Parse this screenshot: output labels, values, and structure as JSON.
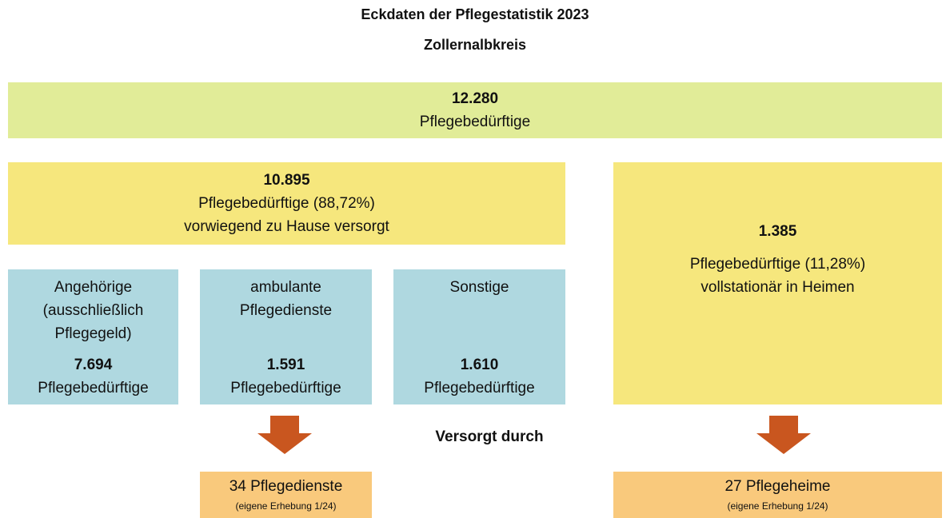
{
  "header": {
    "title": "Eckdaten der Pflegestatistik 2023",
    "subtitle": "Zollernalbkreis"
  },
  "total": {
    "value": "12.280",
    "label": "Pflegebedürftige"
  },
  "home": {
    "value": "10.895",
    "lines": [
      "Pflegebedürftige (88,72%)",
      "vorwiegend zu Hause versorgt"
    ]
  },
  "home_types": [
    {
      "lines": [
        "Angehörige",
        "(ausschließlich",
        "Pflegegeld)"
      ],
      "value": "7.694",
      "unit": "Pflegebedürftige"
    },
    {
      "lines": [
        "ambulante",
        "Pflegedienste"
      ],
      "value": "1.591",
      "unit": "Pflegebedürftige"
    },
    {
      "lines": [
        "Sonstige"
      ],
      "value": "1.610",
      "unit": "Pflegebedürftige"
    }
  ],
  "residential": {
    "value": "1.385",
    "lines": [
      "Pflegebedürftige (11,28%)",
      "vollstationär in Heimen"
    ]
  },
  "served_by": "Versorgt durch",
  "providers": [
    {
      "label": "34 Pflegedienste",
      "note": "(eigene Erhebung 1/24)"
    },
    {
      "label": "27 Pflegeheime",
      "note": "(eigene Erhebung 1/24)"
    }
  ]
}
